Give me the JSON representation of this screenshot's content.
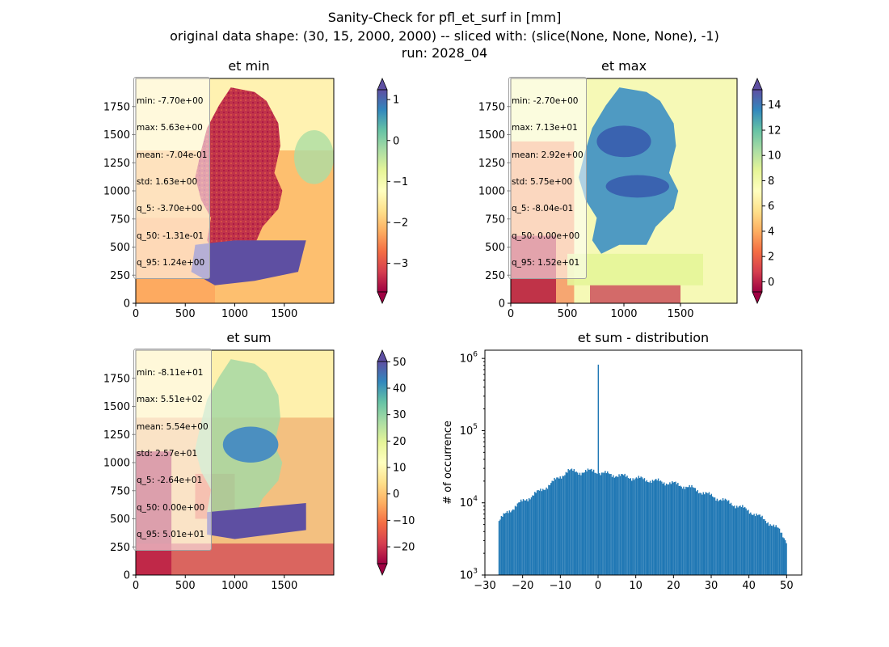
{
  "figure": {
    "suptitle_lines": [
      "Sanity-Check for pfl_et_surf in [mm]",
      "original data shape: (30, 15, 2000, 2000) -- sliced with: (slice(None, None, None), -1)",
      "run: 2028_04"
    ]
  },
  "colors": {
    "spectral": [
      "#9e0142",
      "#d53e4f",
      "#f46d43",
      "#fdae61",
      "#fee08b",
      "#ffffbf",
      "#e6f598",
      "#abdda4",
      "#66c2a5",
      "#3288bd",
      "#5e4fa2"
    ],
    "bar": "#1f77b4",
    "stats_box_border": "#a0a0a0"
  },
  "chart_data": [
    {
      "type": "heatmap",
      "panel": "et min",
      "title": "et min",
      "xlabel": "",
      "ylabel": "",
      "xlim": [
        0,
        2000
      ],
      "ylim": [
        0,
        2000
      ],
      "xticks": [
        0,
        500,
        1000,
        1500
      ],
      "yticks": [
        0,
        250,
        500,
        750,
        1000,
        1250,
        1500,
        1750
      ],
      "colormap": "Spectral",
      "colorbar": {
        "vmin": -3.7,
        "vmax": 1.24,
        "ticks": [
          -3,
          -2,
          -1,
          0,
          1
        ],
        "extend": "both"
      },
      "stats": [
        "min: -7.70e+00",
        "max: 5.63e+00",
        "mean: -7.04e-01",
        "std: 1.63e+00",
        "q_5: -3.70e+00",
        "q_50: -1.31e-01",
        "q_95: 1.24e+00"
      ],
      "stats_placement": "top-left"
    },
    {
      "type": "heatmap",
      "panel": "et max",
      "title": "et max",
      "xlabel": "",
      "ylabel": "",
      "xlim": [
        0,
        2000
      ],
      "ylim": [
        0,
        2000
      ],
      "xticks": [
        0,
        500,
        1000,
        1500
      ],
      "yticks": [
        0,
        250,
        500,
        750,
        1000,
        1250,
        1500,
        1750
      ],
      "colormap": "Spectral",
      "colorbar": {
        "vmin": -0.804,
        "vmax": 15.2,
        "ticks": [
          0,
          2,
          4,
          6,
          8,
          10,
          12,
          14
        ],
        "extend": "both"
      },
      "stats": [
        "min: -2.70e+00",
        "max: 7.13e+01",
        "mean: 2.92e+00",
        "std: 5.75e+00",
        "q_5: -8.04e-01",
        "q_50: 0.00e+00",
        "q_95: 1.52e+01"
      ],
      "stats_placement": "top-left"
    },
    {
      "type": "heatmap",
      "panel": "et sum",
      "title": "et sum",
      "xlabel": "",
      "ylabel": "",
      "xlim": [
        0,
        2000
      ],
      "ylim": [
        0,
        2000
      ],
      "xticks": [
        0,
        500,
        1000,
        1500
      ],
      "yticks": [
        0,
        250,
        500,
        750,
        1000,
        1250,
        1500,
        1750
      ],
      "colormap": "Spectral",
      "colorbar": {
        "vmin": -26.4,
        "vmax": 50.1,
        "ticks": [
          -20,
          -10,
          0,
          10,
          20,
          30,
          40,
          50
        ],
        "extend": "both"
      },
      "stats": [
        "min: -8.11e+01",
        "max: 5.51e+02",
        "mean: 5.54e+00",
        "std: 2.57e+01",
        "q_5: -2.64e+01",
        "q_50: 0.00e+00",
        "q_95: 5.01e+01"
      ],
      "stats_placement": "top-left"
    },
    {
      "type": "bar",
      "panel": "et sum - distribution",
      "title": "et sum - distribution",
      "xlabel": "",
      "ylabel": "# of occurrence",
      "yscale": "log",
      "xlim": [
        -30,
        54
      ],
      "ylim": [
        1000,
        1300000
      ],
      "xticks": [
        -30,
        -20,
        -10,
        0,
        10,
        20,
        30,
        40,
        50
      ],
      "yticks": [
        {
          "value": 1000,
          "base": "10",
          "exp": "3"
        },
        {
          "value": 10000,
          "base": "10",
          "exp": "4"
        },
        {
          "value": 100000,
          "base": "10",
          "exp": "5"
        },
        {
          "value": 1000000,
          "base": "10",
          "exp": "6"
        }
      ],
      "bins": {
        "start": -26.4,
        "end": 50.1,
        "count": 250
      },
      "anchors": [
        [
          -26.4,
          5500
        ],
        [
          -24,
          7500
        ],
        [
          -20,
          10500
        ],
        [
          -15,
          15000
        ],
        [
          -10,
          23000
        ],
        [
          -8,
          28000
        ],
        [
          -5,
          26500
        ],
        [
          -1,
          28000
        ],
        [
          0,
          26000
        ],
        [
          3,
          25000
        ],
        [
          10,
          22000
        ],
        [
          20,
          18500
        ],
        [
          25,
          16000
        ],
        [
          30,
          12500
        ],
        [
          35,
          10000
        ],
        [
          40,
          7800
        ],
        [
          45,
          5500
        ],
        [
          48,
          4200
        ],
        [
          50,
          3000
        ]
      ],
      "spike": {
        "x": 0.0,
        "count": 820000
      },
      "fluctuation_amplitude": 0.1
    }
  ]
}
